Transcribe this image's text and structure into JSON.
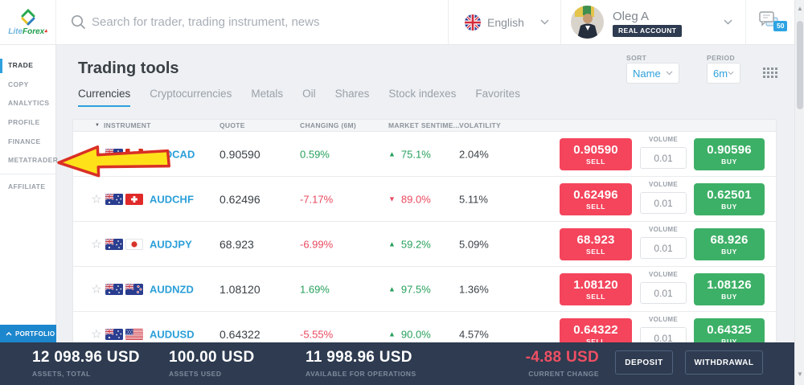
{
  "header": {
    "logo_lite": "Lite",
    "logo_forex": "Forex",
    "search_placeholder": "Search for trader, trading instrument, news",
    "language": "English",
    "user_name": "Oleg A",
    "account_badge": "REAL ACCOUNT",
    "notifications": "50"
  },
  "sidebar": {
    "items": [
      {
        "label": "TRADE",
        "active": true
      },
      {
        "label": "COPY"
      },
      {
        "label": "ANALYTICS"
      },
      {
        "label": "PROFILE"
      },
      {
        "label": "FINANCE"
      },
      {
        "label": "METATRADER"
      },
      {
        "label": "AFFILIATE",
        "divider_before": true
      }
    ],
    "portfolio": "PORTFOLIO"
  },
  "main": {
    "title": "Trading tools",
    "sort_label": "SORT",
    "sort_value": "Name",
    "period_label": "PERIOD",
    "period_value": "6m",
    "tabs": [
      {
        "label": "Currencies",
        "active": true
      },
      {
        "label": "Cryptocurrencies"
      },
      {
        "label": "Metals"
      },
      {
        "label": "Oil"
      },
      {
        "label": "Shares"
      },
      {
        "label": "Stock indexes"
      },
      {
        "label": "Favorites"
      }
    ]
  },
  "table": {
    "columns": [
      "INSTRUMENT",
      "QUOTE",
      "CHANGING (6M)",
      "MARKET SENTIME...",
      "VOLATILITY"
    ],
    "volume_label": "VOLUME",
    "sell_label": "SELL",
    "buy_label": "BUY",
    "rows": [
      {
        "instrument": "AUDCAD",
        "flags": [
          "au",
          "ca"
        ],
        "quote": "0.90590",
        "changing": "0.59%",
        "changing_dir": "up",
        "sentiment": "75.1%",
        "sentiment_dir": "up",
        "volatility": "2.04%",
        "sell": "0.90590",
        "volume": "0.01",
        "buy": "0.90596"
      },
      {
        "instrument": "AUDCHF",
        "flags": [
          "au",
          "ch"
        ],
        "quote": "0.62496",
        "changing": "-7.17%",
        "changing_dir": "down",
        "sentiment": "89.0%",
        "sentiment_dir": "down",
        "volatility": "5.11%",
        "sell": "0.62496",
        "volume": "0.01",
        "buy": "0.62501"
      },
      {
        "instrument": "AUDJPY",
        "flags": [
          "au",
          "jp"
        ],
        "quote": "68.923",
        "changing": "-6.99%",
        "changing_dir": "down",
        "sentiment": "59.2%",
        "sentiment_dir": "up",
        "volatility": "5.09%",
        "sell": "68.923",
        "volume": "0.01",
        "buy": "68.926"
      },
      {
        "instrument": "AUDNZD",
        "flags": [
          "au",
          "nz"
        ],
        "quote": "1.08120",
        "changing": "1.69%",
        "changing_dir": "up",
        "sentiment": "97.5%",
        "sentiment_dir": "up",
        "volatility": "1.36%",
        "sell": "1.08120",
        "volume": "0.01",
        "buy": "1.08126"
      },
      {
        "instrument": "AUDUSD",
        "flags": [
          "au",
          "us"
        ],
        "quote": "0.64322",
        "changing": "-5.55%",
        "changing_dir": "down",
        "sentiment": "90.0%",
        "sentiment_dir": "up",
        "volatility": "4.57%",
        "sell": "0.64322",
        "volume": "0.01",
        "buy": "0.64325"
      }
    ]
  },
  "footer": {
    "stats": [
      {
        "value": "12 098.96 USD",
        "label": "ASSETS, TOTAL"
      },
      {
        "value": "100.00 USD",
        "label": "ASSETS USED"
      },
      {
        "value": "11 998.96 USD",
        "label": "AVAILABLE FOR OPERATIONS"
      },
      {
        "value": "-4.88 USD",
        "label": "CURRENT CHANGE",
        "negative": true
      }
    ],
    "deposit": "DEPOSIT",
    "withdrawal": "WITHDRAWAL"
  },
  "colors": {
    "accent_blue": "#2ea0dd",
    "sell_red": "#f4455c",
    "buy_green": "#3db067",
    "positive": "#27a05c",
    "negative": "#e8495f",
    "footer_bg": "#2e3b50"
  }
}
